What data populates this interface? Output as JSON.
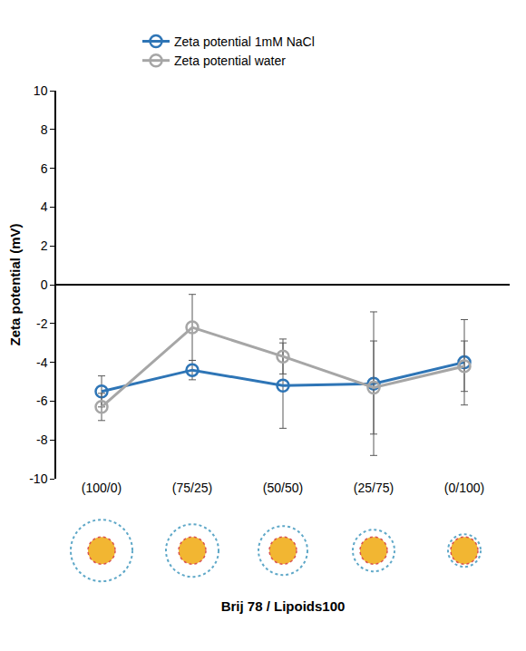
{
  "chart_data": {
    "type": "line",
    "x_label": "Brij 78 / Lipoids100",
    "y_label": "Zeta potential (mV)",
    "categories": [
      "(100/0)",
      "(75/25)",
      "(50/50)",
      "(25/75)",
      "(0/100)"
    ],
    "series": [
      {
        "name": "Zeta potential 1mM NaCl",
        "color": "#2e75b6",
        "marker": "circle-open",
        "line_style": "solid",
        "values": [
          -5.5,
          -4.4,
          -5.2,
          -5.1,
          -4.0
        ],
        "errors": [
          0.8,
          0.5,
          2.2,
          3.7,
          2.2
        ]
      },
      {
        "name": "Zeta potential water",
        "color": "#a6a6a6",
        "marker": "circle-open",
        "line_style": "solid",
        "values": [
          -6.3,
          -2.2,
          -3.7,
          -5.3,
          -4.2
        ],
        "errors": [
          0.7,
          1.7,
          0.9,
          2.4,
          1.3
        ]
      }
    ],
    "ylim": [
      -10,
      10
    ],
    "yticks": [
      -10,
      -8,
      -6,
      -4,
      -2,
      0,
      2,
      4,
      6,
      8,
      10
    ],
    "grid": false,
    "legend": "top"
  }
}
